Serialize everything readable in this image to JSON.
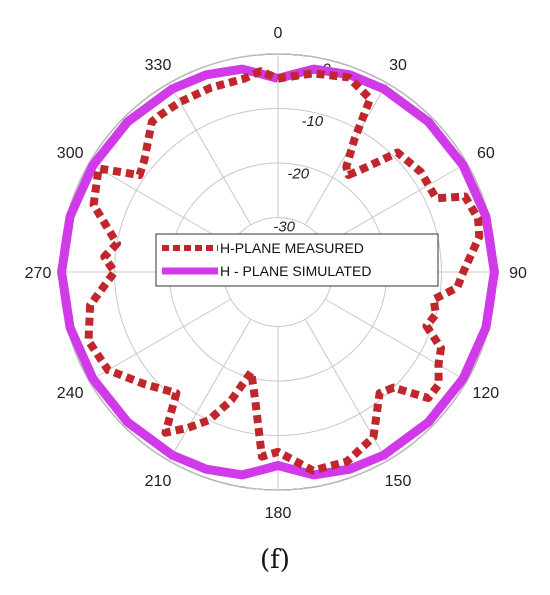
{
  "chart_data": {
    "type": "polar-line",
    "angular_ticks": [
      0,
      30,
      60,
      90,
      120,
      150,
      180,
      210,
      240,
      270,
      300,
      330
    ],
    "radial_ticks": [
      0,
      -10,
      -20,
      -30
    ],
    "rlim": [
      -40,
      0
    ],
    "grid": true,
    "legend_position": "center",
    "series": [
      {
        "name": "H-PLANE MEASURED",
        "color": "#c0272d",
        "style": "dotted",
        "points": [
          [
            0,
            -4.5
          ],
          [
            10,
            -3
          ],
          [
            20,
            -2
          ],
          [
            28,
            -4
          ],
          [
            30,
            -12
          ],
          [
            33,
            -17
          ],
          [
            36,
            -18
          ],
          [
            40,
            -15
          ],
          [
            45,
            -9
          ],
          [
            55,
            -8
          ],
          [
            65,
            -8
          ],
          [
            68,
            -3
          ],
          [
            75,
            -2
          ],
          [
            80,
            -2.5
          ],
          [
            90,
            -6
          ],
          [
            95,
            -7
          ],
          [
            100,
            -11
          ],
          [
            105,
            -10
          ],
          [
            110,
            -11
          ],
          [
            115,
            -7
          ],
          [
            120,
            -6
          ],
          [
            125,
            -4
          ],
          [
            130,
            -4
          ],
          [
            135,
            -10
          ],
          [
            140,
            -11
          ],
          [
            150,
            -5
          ],
          [
            160,
            -3
          ],
          [
            170,
            -3
          ],
          [
            180,
            -7
          ],
          [
            185,
            -6
          ],
          [
            190,
            -16
          ],
          [
            195,
            -21
          ],
          [
            200,
            -15
          ],
          [
            205,
            -10
          ],
          [
            210,
            -7
          ],
          [
            215,
            -4
          ],
          [
            220,
            -11
          ],
          [
            230,
            -8
          ],
          [
            240,
            -4
          ],
          [
            250,
            -3
          ],
          [
            260,
            -5
          ],
          [
            270,
            -10
          ],
          [
            275,
            -8
          ],
          [
            280,
            -10
          ],
          [
            290,
            -4
          ],
          [
            300,
            -2
          ],
          [
            305,
            -9
          ],
          [
            310,
            -8
          ],
          [
            320,
            -4
          ],
          [
            323,
            -4
          ],
          [
            330,
            -4
          ],
          [
            340,
            -4
          ],
          [
            350,
            -4
          ],
          [
            355,
            -3
          ]
        ]
      },
      {
        "name": "H - PLANE SIMULATED",
        "color": "#d03ae8",
        "style": "solid",
        "points": [
          [
            0,
            -4.5
          ],
          [
            5,
            -3.5
          ],
          [
            10,
            -2.2
          ],
          [
            20,
            -1.5
          ],
          [
            30,
            -1.2
          ],
          [
            45,
            -1.0
          ],
          [
            60,
            -0.8
          ],
          [
            75,
            -0.5
          ],
          [
            90,
            -0.3
          ],
          [
            105,
            -0.5
          ],
          [
            120,
            -0.8
          ],
          [
            135,
            -1.0
          ],
          [
            150,
            -1.2
          ],
          [
            160,
            -1.5
          ],
          [
            170,
            -2.2
          ],
          [
            175,
            -3.5
          ],
          [
            180,
            -4.5
          ],
          [
            185,
            -3.5
          ],
          [
            190,
            -2.2
          ],
          [
            200,
            -1.5
          ],
          [
            210,
            -1.2
          ],
          [
            225,
            -1.0
          ],
          [
            240,
            -0.8
          ],
          [
            255,
            -0.5
          ],
          [
            270,
            -0.3
          ],
          [
            285,
            -0.5
          ],
          [
            300,
            -0.8
          ],
          [
            315,
            -1.0
          ],
          [
            330,
            -1.2
          ],
          [
            340,
            -1.5
          ],
          [
            350,
            -2.2
          ],
          [
            355,
            -3.5
          ]
        ]
      }
    ]
  },
  "legend": {
    "measured_label": "H-PLANE MEASURED",
    "simulated_label": "H - PLANE SIMULATED"
  },
  "caption": "(f)"
}
